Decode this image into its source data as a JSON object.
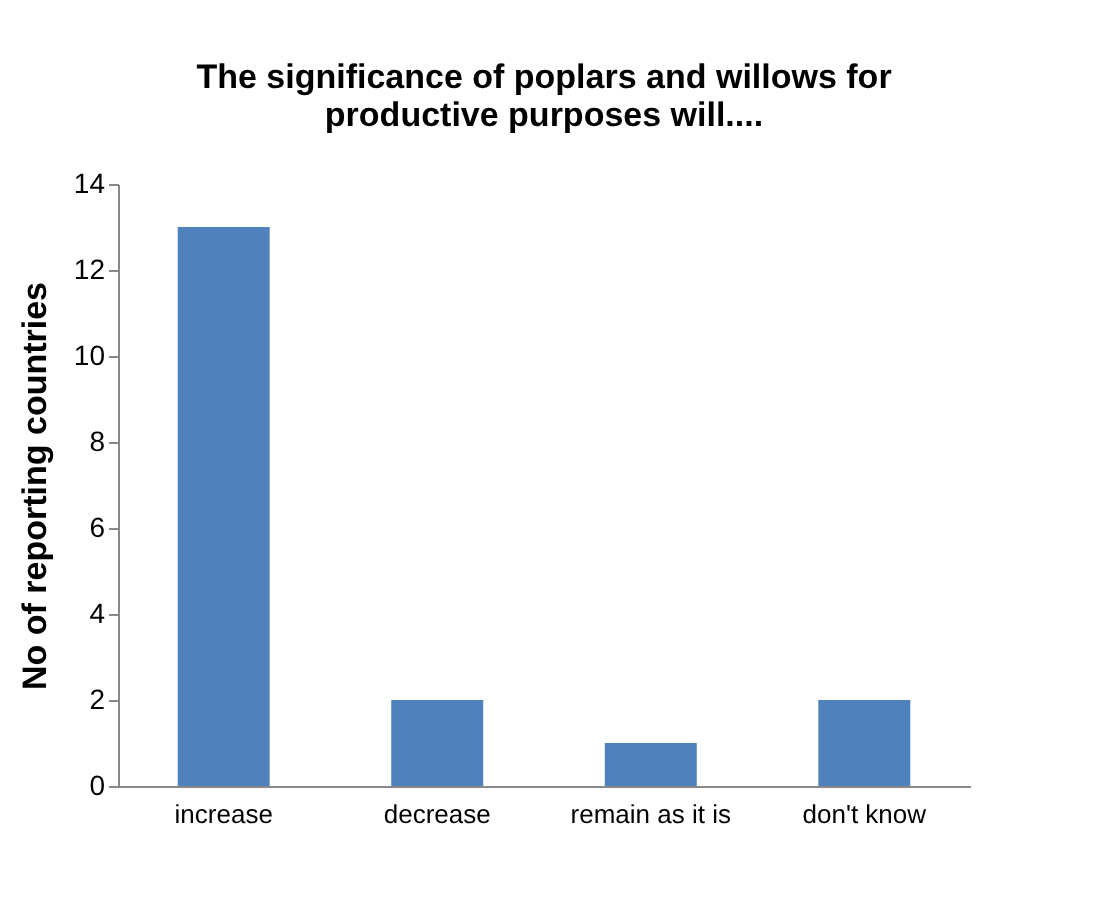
{
  "chart_data": {
    "type": "bar",
    "title": [
      "The significance of poplars and willows for",
      "productive purposes will...."
    ],
    "ylabel": "No of reporting countries",
    "categories": [
      "increase",
      "decrease",
      "remain as it is",
      "don't know"
    ],
    "values": [
      13,
      2,
      1,
      2
    ],
    "color": "#4f81bd",
    "ylim": [
      0,
      14
    ],
    "yticks": [
      0,
      2,
      4,
      6,
      8,
      10,
      12,
      14
    ],
    "grid": false
  }
}
